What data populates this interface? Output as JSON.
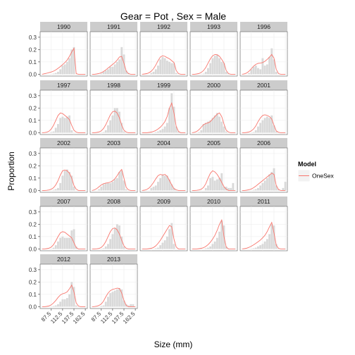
{
  "chart_data": {
    "type": "bar",
    "title": "Gear = Pot , Sex = Male",
    "xlabel": "Size (mm)",
    "ylabel": "Proportion",
    "x_ticks": [
      "87.5",
      "112.5",
      "137.5",
      "162.5"
    ],
    "y_ticks": [
      "0.0",
      "0.1",
      "0.2",
      "0.3"
    ],
    "xlim": [
      63,
      167
    ],
    "ylim": [
      -0.015,
      0.345
    ],
    "size_classes": [
      67.5,
      72.5,
      77.5,
      82.5,
      87.5,
      92.5,
      97.5,
      102.5,
      107.5,
      112.5,
      117.5,
      122.5,
      127.5,
      132.5,
      137.5,
      142.5,
      147.5,
      152.5,
      157.5,
      162.5
    ],
    "bar_color": "#d9d9d9",
    "line_color": "#f8766d",
    "legend": {
      "title": "Model",
      "entries": [
        "OneSex"
      ],
      "position": "right"
    },
    "panels": [
      {
        "year": "1990",
        "observed": [
          0,
          0,
          0,
          0,
          0,
          0.005,
          0.01,
          0.02,
          0.04,
          0.07,
          0.08,
          0.1,
          0.13,
          0.2,
          0.22,
          0,
          0,
          0,
          0,
          0
        ],
        "predicted": [
          0,
          0.004,
          0.008,
          0.013,
          0.018,
          0.025,
          0.035,
          0.048,
          0.062,
          0.078,
          0.095,
          0.115,
          0.145,
          0.18,
          0.21,
          0.005,
          0,
          0,
          0,
          0
        ]
      },
      {
        "year": "1991",
        "observed": [
          0,
          0,
          0,
          0,
          0.005,
          0.02,
          0.03,
          0.04,
          0.06,
          0.06,
          0.08,
          0.1,
          0.12,
          0.22,
          0.16,
          0.03,
          0.01,
          0,
          0,
          0
        ],
        "predicted": [
          0,
          0,
          0.002,
          0.006,
          0.012,
          0.022,
          0.035,
          0.05,
          0.065,
          0.08,
          0.095,
          0.115,
          0.14,
          0.145,
          0.09,
          0.025,
          0.005,
          0,
          0,
          0
        ]
      },
      {
        "year": "1992",
        "observed": [
          0,
          0,
          0,
          0,
          0.01,
          0.02,
          0.04,
          0.07,
          0.12,
          0.14,
          0.13,
          0.11,
          0.1,
          0.09,
          0.09,
          0.01,
          0,
          0,
          0,
          0
        ],
        "predicted": [
          0,
          0.002,
          0.005,
          0.012,
          0.025,
          0.045,
          0.075,
          0.11,
          0.14,
          0.15,
          0.145,
          0.135,
          0.125,
          0.11,
          0.095,
          0.03,
          0.005,
          0,
          0,
          0
        ]
      },
      {
        "year": "1993",
        "observed": [
          0,
          0,
          0,
          0,
          0,
          0.005,
          0.02,
          0.05,
          0.09,
          0.13,
          0.15,
          0.16,
          0.13,
          0.1,
          0.09,
          0.02,
          0.005,
          0,
          0,
          0
        ],
        "predicted": [
          0,
          0,
          0.002,
          0.006,
          0.015,
          0.03,
          0.055,
          0.09,
          0.125,
          0.15,
          0.16,
          0.158,
          0.145,
          0.12,
          0.09,
          0.03,
          0.005,
          0,
          0,
          0
        ]
      },
      {
        "year": "1996",
        "observed": [
          0,
          0,
          0,
          0.01,
          0.04,
          0.06,
          0.07,
          0.05,
          0.04,
          0.13,
          0.07,
          0.08,
          0.14,
          0.21,
          0.12,
          0.02,
          0,
          0,
          0,
          0
        ],
        "predicted": [
          0,
          0.003,
          0.01,
          0.025,
          0.045,
          0.065,
          0.08,
          0.088,
          0.09,
          0.095,
          0.105,
          0.12,
          0.14,
          0.16,
          0.13,
          0.04,
          0.005,
          0,
          0,
          0
        ]
      },
      {
        "year": "1997",
        "observed": [
          0,
          0,
          0,
          0,
          0.005,
          0.01,
          0.04,
          0.07,
          0.12,
          0.13,
          0.12,
          0.13,
          0.14,
          0.02,
          0,
          0,
          0,
          0,
          0,
          0
        ],
        "predicted": [
          0,
          0.001,
          0.004,
          0.012,
          0.03,
          0.06,
          0.1,
          0.14,
          0.16,
          0.155,
          0.14,
          0.125,
          0.105,
          0.06,
          0.02,
          0.005,
          0,
          0,
          0,
          0
        ]
      },
      {
        "year": "1998",
        "observed": [
          0,
          0,
          0,
          0,
          0,
          0.005,
          0.02,
          0.06,
          0.1,
          0.14,
          0.2,
          0.2,
          0.17,
          0.08,
          0.01,
          0,
          0,
          0,
          0,
          0
        ],
        "predicted": [
          0,
          0,
          0.002,
          0.006,
          0.015,
          0.035,
          0.065,
          0.105,
          0.145,
          0.17,
          0.175,
          0.16,
          0.12,
          0.06,
          0.02,
          0.005,
          0,
          0,
          0,
          0
        ]
      },
      {
        "year": "1999",
        "observed": [
          0,
          0,
          0,
          0,
          0,
          0,
          0.005,
          0.01,
          0.02,
          0.03,
          0.05,
          0.08,
          0.2,
          0.32,
          0.21,
          0.05,
          0.01,
          0,
          0,
          0
        ],
        "predicted": [
          0,
          0,
          0,
          0.002,
          0.005,
          0.01,
          0.018,
          0.03,
          0.045,
          0.065,
          0.09,
          0.13,
          0.2,
          0.24,
          0.16,
          0.05,
          0.01,
          0,
          0,
          0
        ]
      },
      {
        "year": "2000",
        "observed": [
          0,
          0,
          0,
          0.005,
          0.02,
          0.07,
          0.08,
          0.09,
          0.1,
          0.12,
          0.14,
          0.16,
          0.13,
          0.09,
          0.05,
          0.01,
          0,
          0,
          0,
          0
        ],
        "predicted": [
          0,
          0.003,
          0.01,
          0.025,
          0.045,
          0.065,
          0.075,
          0.08,
          0.09,
          0.11,
          0.13,
          0.15,
          0.16,
          0.13,
          0.07,
          0.02,
          0.005,
          0,
          0,
          0
        ]
      },
      {
        "year": "2001",
        "observed": [
          0,
          0,
          0,
          0,
          0,
          0.005,
          0.02,
          0.05,
          0.08,
          0.1,
          0.12,
          0.13,
          0.12,
          0.14,
          0.06,
          0.01,
          0,
          0,
          0,
          0
        ],
        "predicted": [
          0,
          0,
          0.002,
          0.006,
          0.015,
          0.03,
          0.055,
          0.09,
          0.12,
          0.14,
          0.145,
          0.14,
          0.13,
          0.11,
          0.06,
          0.015,
          0.003,
          0,
          0,
          0
        ]
      },
      {
        "year": "2002",
        "observed": [
          0,
          0,
          0,
          0,
          0,
          0.005,
          0.01,
          0.02,
          0.06,
          0.12,
          0.16,
          0.17,
          0.15,
          0.12,
          0.03,
          0,
          0,
          0,
          0,
          0
        ],
        "predicted": [
          0,
          0,
          0.001,
          0.004,
          0.01,
          0.022,
          0.045,
          0.08,
          0.125,
          0.16,
          0.165,
          0.16,
          0.14,
          0.1,
          0.04,
          0.01,
          0,
          0,
          0,
          0
        ]
      },
      {
        "year": "2003",
        "observed": [
          0,
          0,
          0,
          0.01,
          0.03,
          0.05,
          0.06,
          0.06,
          0.06,
          0.07,
          0.09,
          0.1,
          0.15,
          0.16,
          0.08,
          0.01,
          0,
          0,
          0,
          0
        ],
        "predicted": [
          0,
          0.005,
          0.015,
          0.03,
          0.045,
          0.055,
          0.06,
          0.063,
          0.068,
          0.078,
          0.095,
          0.12,
          0.15,
          0.17,
          0.1,
          0.025,
          0.005,
          0,
          0,
          0
        ]
      },
      {
        "year": "2004",
        "observed": [
          0,
          0,
          0,
          0,
          0.02,
          0.03,
          0.04,
          0.07,
          0.1,
          0.13,
          0.12,
          0.12,
          0.09,
          0.05,
          0.02,
          0.005,
          0,
          0,
          0,
          0
        ],
        "predicted": [
          0,
          0.002,
          0.008,
          0.02,
          0.04,
          0.065,
          0.095,
          0.12,
          0.13,
          0.125,
          0.13,
          0.115,
          0.08,
          0.045,
          0.015,
          0.005,
          0,
          0,
          0,
          0
        ]
      },
      {
        "year": "2005",
        "observed": [
          0,
          0,
          0,
          0,
          0,
          0,
          0.02,
          0.04,
          0.1,
          0.11,
          0.08,
          0.09,
          0.1,
          0.14,
          0.03,
          0.03,
          0.02,
          0.02,
          0.06,
          0
        ],
        "predicted": [
          0,
          0,
          0.001,
          0.004,
          0.01,
          0.025,
          0.055,
          0.1,
          0.14,
          0.16,
          0.15,
          0.13,
          0.1,
          0.065,
          0.03,
          0.01,
          0,
          0,
          0,
          0
        ]
      },
      {
        "year": "2006",
        "observed": [
          0,
          0,
          0,
          0,
          0,
          0.005,
          0.01,
          0.02,
          0.04,
          0.06,
          0.08,
          0.1,
          0.13,
          0.15,
          0.18,
          0.04,
          0.01,
          0,
          0.02,
          0.07
        ],
        "predicted": [
          0,
          0,
          0.002,
          0.006,
          0.012,
          0.022,
          0.035,
          0.05,
          0.065,
          0.08,
          0.095,
          0.11,
          0.125,
          0.14,
          0.13,
          0.04,
          0.008,
          0,
          0,
          0
        ]
      },
      {
        "year": "2007",
        "observed": [
          0,
          0,
          0,
          0,
          0,
          0.01,
          0.03,
          0.06,
          0.09,
          0.1,
          0.09,
          0.09,
          0.09,
          0.15,
          0.16,
          0.02,
          0,
          0,
          0,
          0
        ],
        "predicted": [
          0,
          0,
          0.002,
          0.006,
          0.015,
          0.035,
          0.065,
          0.1,
          0.13,
          0.14,
          0.135,
          0.12,
          0.105,
          0.09,
          0.05,
          0.01,
          0,
          0,
          0,
          0
        ]
      },
      {
        "year": "2008",
        "observed": [
          0,
          0,
          0,
          0,
          0,
          0.005,
          0.02,
          0.04,
          0.08,
          0.12,
          0.17,
          0.2,
          0.19,
          0.1,
          0.02,
          0,
          0,
          0,
          0,
          0
        ],
        "predicted": [
          0,
          0,
          0.001,
          0.004,
          0.012,
          0.03,
          0.06,
          0.1,
          0.14,
          0.165,
          0.17,
          0.155,
          0.12,
          0.07,
          0.025,
          0.005,
          0,
          0,
          0,
          0
        ]
      },
      {
        "year": "2009",
        "observed": [
          0,
          0,
          0,
          0,
          0,
          0,
          0.005,
          0.01,
          0.03,
          0.05,
          0.07,
          0.1,
          0.16,
          0.21,
          0.04,
          0,
          0,
          0,
          0,
          0
        ],
        "predicted": [
          0,
          0,
          0,
          0.002,
          0.005,
          0.012,
          0.025,
          0.045,
          0.07,
          0.1,
          0.13,
          0.16,
          0.19,
          0.18,
          0.08,
          0.015,
          0,
          0,
          0,
          0
        ]
      },
      {
        "year": "2010",
        "observed": [
          0,
          0,
          0,
          0,
          0,
          0,
          0.005,
          0.01,
          0.02,
          0.04,
          0.06,
          0.09,
          0.14,
          0.23,
          0.19,
          0.02,
          0,
          0,
          0,
          0
        ],
        "predicted": [
          0,
          0,
          0,
          0.002,
          0.005,
          0.01,
          0.02,
          0.035,
          0.055,
          0.08,
          0.11,
          0.15,
          0.2,
          0.235,
          0.1,
          0.015,
          0,
          0,
          0,
          0
        ]
      },
      {
        "year": "2011",
        "observed": [
          0,
          0,
          0,
          0,
          0,
          0.005,
          0.01,
          0.02,
          0.03,
          0.04,
          0.06,
          0.08,
          0.12,
          0.2,
          0.19,
          0.04,
          0.005,
          0,
          0,
          0
        ],
        "predicted": [
          0,
          0.002,
          0.006,
          0.013,
          0.022,
          0.033,
          0.045,
          0.058,
          0.072,
          0.09,
          0.11,
          0.14,
          0.18,
          0.215,
          0.13,
          0.03,
          0.005,
          0,
          0,
          0
        ]
      },
      {
        "year": "2012",
        "observed": [
          0,
          0,
          0,
          0,
          0,
          0.005,
          0.01,
          0.02,
          0.04,
          0.06,
          0.06,
          0.07,
          0.1,
          0.2,
          0.16,
          0.01,
          0,
          0,
          0,
          0
        ],
        "predicted": [
          0,
          0,
          0.002,
          0.006,
          0.015,
          0.03,
          0.05,
          0.075,
          0.095,
          0.105,
          0.11,
          0.12,
          0.145,
          0.175,
          0.12,
          0.03,
          0.005,
          0,
          0,
          0
        ]
      },
      {
        "year": "2013",
        "observed": [
          0,
          0,
          0,
          0,
          0.005,
          0.01,
          0.04,
          0.08,
          0.11,
          0.12,
          0.13,
          0.14,
          0.15,
          0.14,
          0.05,
          0.02,
          0.01,
          0.02,
          0.02,
          0
        ],
        "predicted": [
          0,
          0.001,
          0.004,
          0.01,
          0.022,
          0.045,
          0.08,
          0.11,
          0.13,
          0.14,
          0.145,
          0.15,
          0.148,
          0.11,
          0.05,
          0.01,
          0,
          0,
          0,
          0
        ]
      }
    ]
  }
}
